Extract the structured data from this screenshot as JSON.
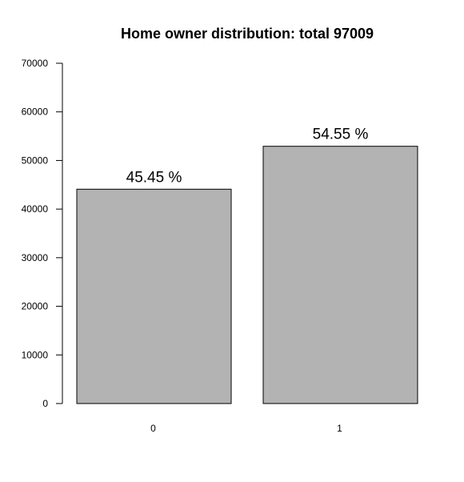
{
  "chart_data": {
    "type": "bar",
    "title": "Home owner distribution: total  97009",
    "xlabel": "",
    "ylabel": "",
    "categories": [
      "0",
      "1"
    ],
    "values": [
      44090,
      52919
    ],
    "data_labels": [
      "45.45 %",
      "54.55 %"
    ],
    "ylim": [
      0,
      70000
    ],
    "yticks": [
      0,
      10000,
      20000,
      30000,
      40000,
      50000,
      60000,
      70000
    ],
    "ytick_labels": [
      "0",
      "10000",
      "20000",
      "30000",
      "40000",
      "50000",
      "60000",
      "70000"
    ],
    "grid": false,
    "legend": "none",
    "bar_color": "#b3b3b3"
  }
}
